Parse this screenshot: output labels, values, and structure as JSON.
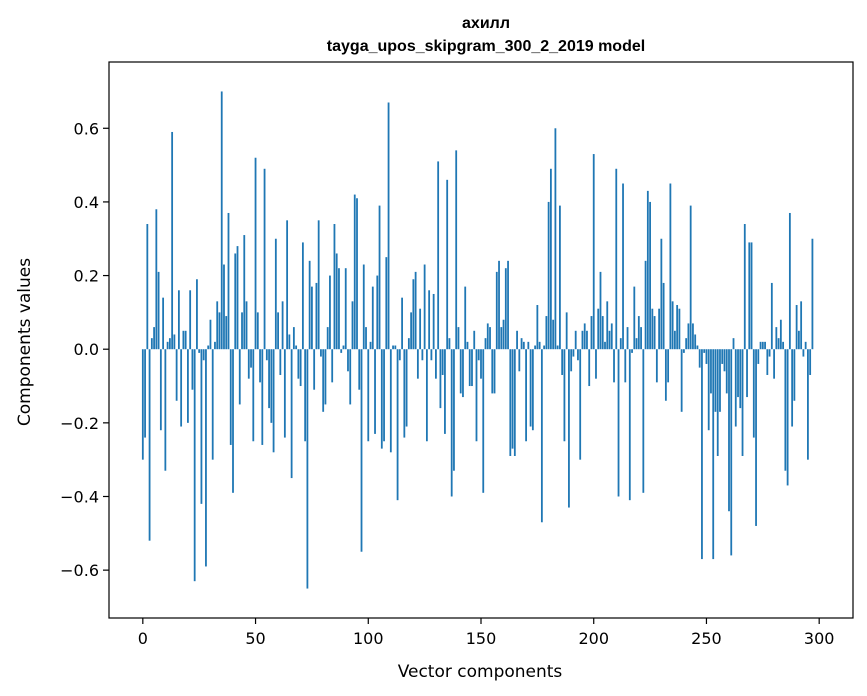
{
  "chart_data": {
    "type": "bar",
    "title_line1": "ахилл",
    "title_line2": "tayga_upos_skipgram_300_2_2019 model",
    "xlabel": "Vector components",
    "ylabel": "Components values",
    "xlim": [
      -15,
      315
    ],
    "ylim": [
      -0.73,
      0.78
    ],
    "xticks": [
      0,
      50,
      100,
      150,
      200,
      250,
      300
    ],
    "xtick_labels": [
      "0",
      "50",
      "100",
      "150",
      "200",
      "250",
      "300"
    ],
    "yticks": [
      -0.6,
      -0.4,
      -0.2,
      0.0,
      0.2,
      0.4,
      0.6
    ],
    "ytick_labels": [
      "−0.6",
      "−0.4",
      "−0.2",
      "0.0",
      "0.2",
      "0.4",
      "0.6"
    ],
    "bar_color": "#1f77b4",
    "grid": false,
    "values": [
      -0.3,
      -0.24,
      0.34,
      -0.52,
      0.03,
      0.06,
      0.38,
      0.21,
      -0.22,
      0.14,
      -0.33,
      0.02,
      0.03,
      0.59,
      0.04,
      -0.14,
      0.16,
      -0.21,
      0.05,
      0.05,
      -0.2,
      0.16,
      -0.11,
      -0.63,
      0.19,
      -0.01,
      -0.42,
      -0.03,
      -0.59,
      0.01,
      0.08,
      -0.3,
      0.02,
      0.13,
      0.1,
      0.7,
      0.23,
      0.09,
      0.37,
      -0.26,
      -0.39,
      0.26,
      0.28,
      -0.15,
      0.1,
      0.31,
      0.13,
      -0.08,
      -0.05,
      -0.25,
      0.52,
      0.1,
      -0.09,
      -0.26,
      0.49,
      -0.03,
      -0.16,
      -0.2,
      -0.28,
      0.3,
      0.1,
      -0.07,
      0.13,
      -0.24,
      0.35,
      0.04,
      -0.35,
      0.06,
      0.01,
      -0.08,
      -0.1,
      0.29,
      -0.25,
      -0.65,
      0.24,
      0.17,
      -0.11,
      0.18,
      0.35,
      -0.02,
      -0.17,
      -0.15,
      0.06,
      0.2,
      -0.09,
      0.34,
      0.26,
      0.22,
      -0.01,
      0.01,
      0.22,
      -0.06,
      -0.15,
      0.13,
      0.42,
      0.41,
      -0.11,
      -0.55,
      0.23,
      0.06,
      -0.25,
      0.02,
      0.17,
      -0.23,
      0.2,
      0.39,
      -0.27,
      -0.25,
      0.25,
      0.67,
      -0.28,
      0.01,
      0.01,
      -0.41,
      -0.03,
      0.14,
      -0.24,
      -0.21,
      0.03,
      0.1,
      0.19,
      0.21,
      -0.08,
      0.11,
      -0.03,
      0.23,
      -0.25,
      0.16,
      -0.03,
      0.15,
      -0.08,
      0.51,
      -0.16,
      -0.07,
      -0.23,
      0.46,
      0.03,
      -0.4,
      -0.33,
      0.54,
      0.06,
      -0.12,
      -0.13,
      0.17,
      0.02,
      -0.1,
      -0.1,
      0.05,
      -0.25,
      -0.03,
      -0.08,
      -0.39,
      0.03,
      0.07,
      0.06,
      -0.12,
      -0.12,
      0.21,
      0.24,
      0.06,
      0.08,
      0.22,
      0.24,
      -0.29,
      -0.27,
      -0.29,
      0.05,
      -0.06,
      0.03,
      0.02,
      -0.25,
      0.02,
      -0.21,
      -0.22,
      0.01,
      0.12,
      0.02,
      -0.47,
      0.01,
      0.09,
      0.4,
      0.49,
      0.08,
      0.6,
      0.01,
      0.39,
      -0.07,
      -0.25,
      0.1,
      -0.43,
      -0.06,
      -0.02,
      0.05,
      -0.03,
      -0.3,
      0.05,
      0.07,
      0.05,
      -0.1,
      0.09,
      0.53,
      -0.08,
      0.11,
      0.21,
      0.09,
      0.02,
      0.13,
      0.05,
      0.07,
      -0.09,
      0.49,
      -0.4,
      0.03,
      0.45,
      -0.09,
      0.06,
      -0.41,
      -0.01,
      0.17,
      0.03,
      0.09,
      0.06,
      -0.39,
      0.24,
      0.43,
      0.4,
      0.11,
      0.09,
      -0.09,
      0.11,
      0.3,
      0.18,
      -0.14,
      -0.09,
      0.45,
      0.13,
      0.05,
      0.12,
      0.11,
      -0.17,
      -0.01,
      0.03,
      0.07,
      0.39,
      0.07,
      0.04,
      0.01,
      -0.05,
      -0.57,
      -0.01,
      -0.04,
      -0.22,
      -0.12,
      -0.57,
      -0.17,
      -0.29,
      -0.17,
      -0.04,
      -0.06,
      -0.12,
      -0.44,
      -0.56,
      0.03,
      -0.21,
      -0.13,
      -0.16,
      -0.29,
      0.34,
      -0.13,
      0.29,
      0.29,
      -0.24,
      -0.48,
      -0.04,
      0.02,
      0.02,
      0.02,
      -0.07,
      -0.02,
      0.18,
      -0.08,
      0.06,
      0.03,
      0.08,
      0.02,
      -0.33,
      -0.37,
      0.37,
      -0.21,
      -0.14,
      0.12,
      0.05,
      0.13,
      -0.02,
      0.02,
      -0.3,
      -0.07,
      0.3,
      0.0,
      0.0
    ]
  }
}
